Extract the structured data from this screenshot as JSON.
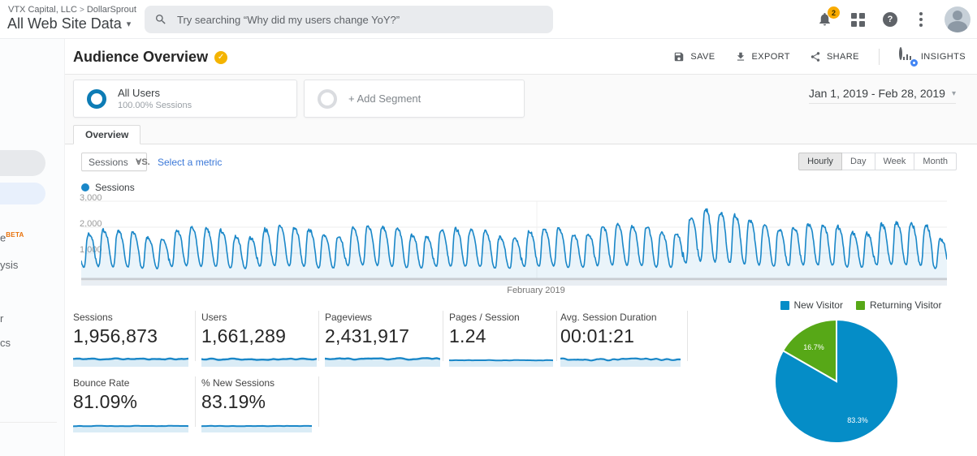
{
  "topbar": {
    "breadcrumb": {
      "account": "VTX Capital, LLC",
      "separator": ">",
      "property": "DollarSprout"
    },
    "view_title": "All Web Site Data",
    "search_placeholder": "Try searching “Why did my users change YoY?”",
    "notification_count": "2"
  },
  "sidebar": {
    "fragments": [
      {
        "text": "e",
        "badge": "BETA"
      },
      {
        "text": "ysis"
      },
      {
        "text": "r"
      },
      {
        "text": "cs"
      }
    ]
  },
  "header": {
    "title": "Audience Overview",
    "actions": {
      "save": "SAVE",
      "export": "EXPORT",
      "share": "SHARE",
      "insights": "INSIGHTS"
    }
  },
  "segments": {
    "all_users": {
      "title": "All Users",
      "subtitle": "100.00% Sessions"
    },
    "add_segment": "+ Add Segment",
    "date_range": "Jan 1, 2019 - Feb 28, 2019"
  },
  "tabs": {
    "overview": "Overview"
  },
  "controls": {
    "metric_selector": "Sessions",
    "vs": "VS.",
    "select_metric": "Select a metric",
    "granularity": [
      "Hourly",
      "Day",
      "Week",
      "Month"
    ],
    "selected_granularity": "Hourly"
  },
  "chart_data": [
    {
      "type": "area",
      "title": "Sessions",
      "granularity": "hourly",
      "x_label": "February 2019",
      "ylim": [
        0,
        3000
      ],
      "yticks": [
        "1,000",
        "2,000",
        "3,000"
      ],
      "days": 59,
      "date_range": "Jan 1, 2019 - Feb 28, 2019",
      "night_trough_ratio": 0.27,
      "daily_peaks": [
        1750,
        1900,
        1850,
        1800,
        1600,
        1560,
        1880,
        1980,
        1930,
        1880,
        1640,
        1600,
        1930,
        2030,
        1980,
        1930,
        1690,
        1650,
        1980,
        2080,
        2020,
        1930,
        1690,
        1640,
        1900,
        1950,
        1900,
        1850,
        1620,
        1580,
        1860,
        1920,
        1960,
        1720,
        1760,
        2020,
        2100,
        2060,
        2000,
        1800,
        1760,
        2380,
        2700,
        2580,
        2460,
        2280,
        2100,
        1920,
        2010,
        2140,
        2100,
        2040,
        1800,
        1760,
        2120,
        2200,
        2140,
        2080,
        1560
      ],
      "line_color": "#1a87c8",
      "fill_color": "rgba(26,135,200,0.09)"
    },
    {
      "type": "pie",
      "labels": [
        "New Visitor",
        "Returning Visitor"
      ],
      "values": [
        83.3,
        16.7
      ],
      "value_labels": [
        "83.3%",
        "16.7%"
      ],
      "colors": [
        "#058dc7",
        "#57a817"
      ],
      "legend_position": "top"
    }
  ],
  "metrics": {
    "items": [
      {
        "label": "Sessions",
        "value": "1,956,873",
        "spark": {
          "type": "area-noisy",
          "seed": 11
        }
      },
      {
        "label": "Users",
        "value": "1,661,289",
        "spark": {
          "type": "area-noisy",
          "seed": 22
        }
      },
      {
        "label": "Pageviews",
        "value": "2,431,917",
        "spark": {
          "type": "area-noisy",
          "seed": 33
        }
      },
      {
        "label": "Pages / Session",
        "value": "1.24",
        "spark": {
          "type": "line-flat",
          "seed": 44
        }
      },
      {
        "label": "Avg. Session Duration",
        "value": "00:01:21",
        "spark": {
          "type": "line-noisy",
          "seed": 55
        }
      },
      {
        "label": "Bounce Rate",
        "value": "81.09%",
        "spark": {
          "type": "line-flat",
          "seed": 66
        }
      },
      {
        "label": "% New Sessions",
        "value": "83.19%",
        "spark": {
          "type": "line-flat",
          "seed": 77
        }
      }
    ]
  },
  "colors": {
    "chart_blue": "#1a87c8",
    "pie_blue": "#058dc7",
    "pie_green": "#57a817",
    "badge_amber": "#f9ab00",
    "insights_badge": "#4285f4",
    "link_blue": "#3b78d8"
  }
}
